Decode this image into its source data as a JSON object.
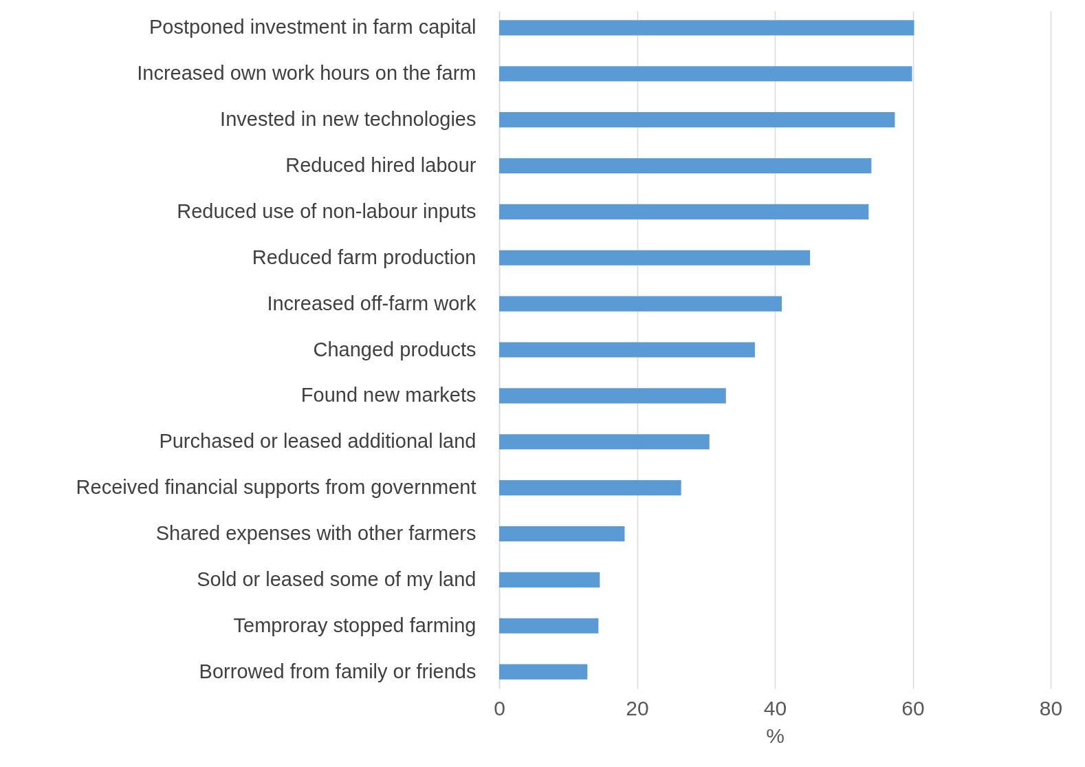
{
  "chart_data": {
    "type": "bar",
    "orientation": "horizontal",
    "xlabel": "%",
    "categories": [
      "Postponed investment in farm capital",
      "Increased own work hours on the farm",
      "Invested in new technologies",
      "Reduced hired labour",
      "Reduced use of non-labour inputs",
      "Reduced farm production",
      "Increased off-farm work",
      "Changed products",
      "Found new markets",
      "Purchased or leased additional land",
      "Received financial supports from government",
      "Shared expenses with other farmers",
      "Sold or leased some of my land",
      "Temproray stopped farming",
      "Borrowed from family or friends"
    ],
    "values": [
      60.2,
      59.9,
      57.4,
      54.0,
      53.6,
      45.1,
      41.0,
      37.1,
      32.9,
      30.5,
      26.4,
      18.2,
      14.6,
      14.4,
      12.8
    ],
    "color": "#5b9bd5",
    "xlim": [
      0,
      80
    ],
    "xticks": [
      0,
      20,
      40,
      60,
      80
    ],
    "grid": "x"
  }
}
